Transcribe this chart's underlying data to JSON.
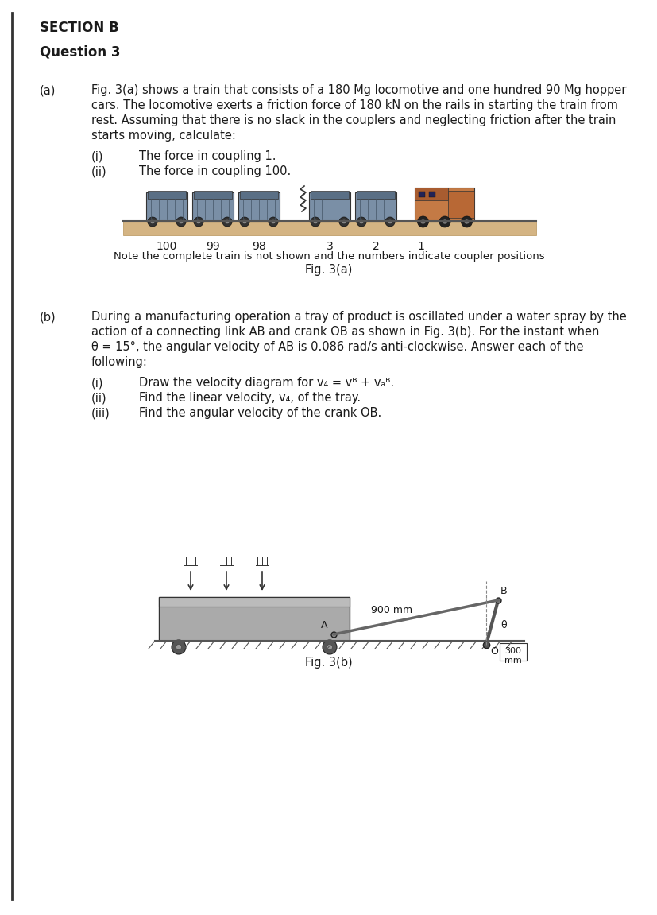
{
  "bg_color": "#ffffff",
  "section_title": "SECTION B",
  "question_title": "Question 3",
  "part_a_label": "(a)",
  "part_a_text_line1": "Fig. 3(a) shows a train that consists of a 180 Mg locomotive and one hundred 90 Mg hopper",
  "part_a_text_line2": "cars. The locomotive exerts a friction force of 180 kN on the rails in starting the train from",
  "part_a_text_line3": "rest. Assuming that there is no slack in the couplers and neglecting friction after the train",
  "part_a_text_line4": "starts moving, calculate:",
  "sub_i_label": "(i)",
  "sub_i_text": "The force in coupling 1.",
  "sub_ii_label": "(ii)",
  "sub_ii_text": "The force in coupling 100.",
  "fig3a_caption1": "Note the complete train is not shown and the numbers indicate coupler positions",
  "fig3a_caption2": "Fig. 3(a)",
  "coupler_numbers": [
    "100",
    "99",
    "98",
    "3",
    "2",
    "1"
  ],
  "part_b_label": "(b)",
  "part_b_text_line1": "During a manufacturing operation a tray of product is oscillated under a water spray by the",
  "part_b_text_line2": "action of a connecting link AB and crank OB as shown in Fig. 3(b). For the instant when",
  "part_b_text_line3": "θ = 15°, the angular velocity of AB is 0.086 rad/s anti-clockwise. Answer each of the",
  "part_b_text_line4": "following:",
  "sub_bi_label": "(i)",
  "sub_bi_text": "Draw the velocity diagram for v₄ = vᴮ + vₐᴮ.",
  "sub_bii_label": "(ii)",
  "sub_bii_text": "Find the linear velocity, v₄, of the tray.",
  "sub_biii_label": "(iii)",
  "sub_biii_text": "Find the angular velocity of the crank OB.",
  "fig3b_label_900": "900 mm",
  "fig3b_label_300": "300\nmm",
  "fig3b_caption": "Fig. 3(b)",
  "text_color": "#1a1a1a",
  "body_fontsize": 10.5,
  "label_fontsize": 10.5
}
